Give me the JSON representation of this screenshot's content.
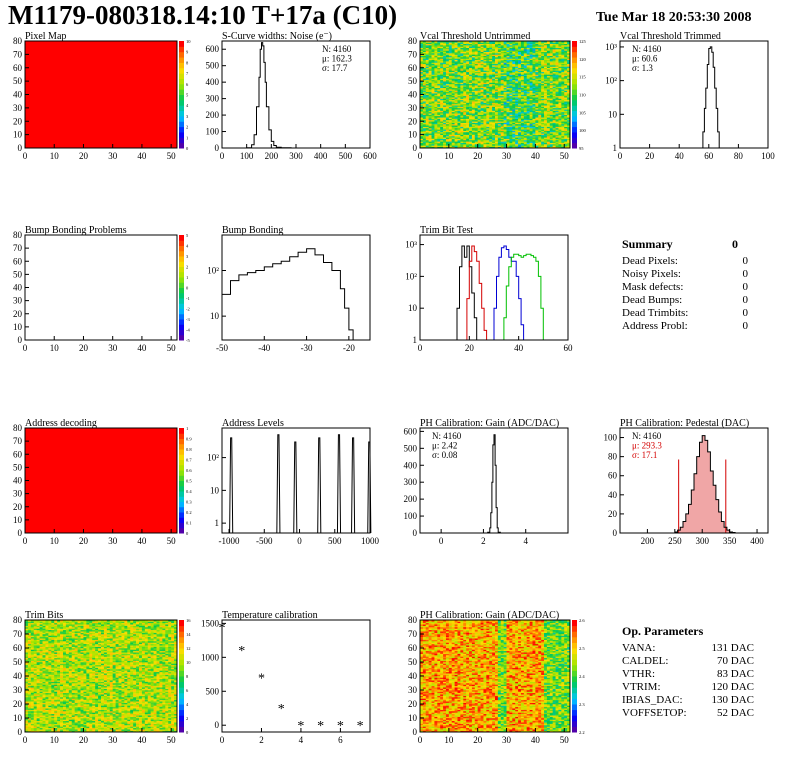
{
  "header": {
    "title": "M1179-080318.14:10 T+17a (C10)",
    "date": "Tue Mar 18 20:53:30 2008"
  },
  "colors": {
    "frame": "#000000",
    "map_fill": "#ff0000",
    "hist_line": "#000000",
    "trim_red": "#d40000",
    "trim_blue": "#0000d4",
    "trim_green": "#00c000",
    "pedestal_fill": "#d40000"
  },
  "chart_data": [
    {
      "id": "pixel-map",
      "type": "heatmap",
      "title": "Pixel Map",
      "xlim": [
        0,
        52
      ],
      "ylim": [
        0,
        80
      ],
      "xticks": [
        "0",
        "10",
        "20",
        "30",
        "40",
        "50"
      ],
      "yticks": [
        "0",
        "10",
        "20",
        "30",
        "40",
        "50",
        "60",
        "70",
        "80"
      ],
      "pattern": "uniform",
      "fill": "#ff0000",
      "palette_ticks": [
        "0",
        "1",
        "2",
        "3",
        "4",
        "5",
        "6",
        "7",
        "8",
        "9",
        "10"
      ]
    },
    {
      "id": "noise",
      "type": "line",
      "title": "S-Curve widths: Noise (e⁻)",
      "xlim": [
        0,
        600
      ],
      "ylim": [
        0,
        650
      ],
      "xticks": [
        "0",
        "100",
        "200",
        "300",
        "400",
        "500",
        "600"
      ],
      "yticks": [
        "0",
        "100",
        "200",
        "300",
        "400",
        "500",
        "600"
      ],
      "x": [
        80,
        100,
        120,
        130,
        140,
        150,
        155,
        160,
        165,
        170,
        175,
        180,
        190,
        200,
        210,
        220,
        240,
        260,
        280
      ],
      "values": [
        0,
        2,
        20,
        80,
        250,
        430,
        600,
        640,
        620,
        520,
        400,
        250,
        110,
        40,
        15,
        5,
        2,
        1,
        0
      ],
      "stats": [
        "N: 4160",
        "μ: 162.3",
        "σ: 17.7"
      ]
    },
    {
      "id": "vcal-untrimmed",
      "type": "heatmap",
      "title": "Vcal Threshold Untrimmed",
      "xlim": [
        0,
        52
      ],
      "ylim": [
        0,
        80
      ],
      "xticks": [
        "0",
        "10",
        "20",
        "30",
        "40",
        "50"
      ],
      "yticks": [
        "0",
        "10",
        "20",
        "30",
        "40",
        "50",
        "60",
        "70",
        "80"
      ],
      "pattern": "noise-cold",
      "palette_ticks": [
        "95",
        "100",
        "105",
        "110",
        "115",
        "120",
        "125"
      ]
    },
    {
      "id": "vcal-trimmed",
      "type": "line",
      "title": "Vcal Threshold Trimmed",
      "yscale": "log",
      "xlim": [
        0,
        100
      ],
      "ylim": [
        1,
        1500
      ],
      "xticks": [
        "0",
        "20",
        "40",
        "60",
        "80",
        "100"
      ],
      "yticks": [
        "1",
        "10",
        "10²",
        "10³"
      ],
      "x": [
        55,
        56,
        57,
        58,
        59,
        60,
        61,
        62,
        63,
        64,
        65,
        66,
        67,
        68
      ],
      "values": [
        1,
        3,
        15,
        60,
        300,
        900,
        1000,
        700,
        250,
        60,
        15,
        3,
        1,
        1
      ],
      "stats": [
        "N: 4160",
        "μ: 60.6",
        "σ:  1.3"
      ]
    },
    {
      "id": "bump-problems",
      "type": "heatmap",
      "title": "Bump Bonding Problems",
      "xlim": [
        0,
        52
      ],
      "ylim": [
        0,
        80
      ],
      "xticks": [
        "0",
        "10",
        "20",
        "30",
        "40",
        "50"
      ],
      "yticks": [
        "0",
        "10",
        "20",
        "30",
        "40",
        "50",
        "60",
        "70",
        "80"
      ],
      "pattern": "empty",
      "palette_ticks": [
        "-5",
        "-4",
        "-3",
        "-2",
        "-1",
        "0",
        "1",
        "2",
        "3",
        "4",
        "5"
      ]
    },
    {
      "id": "bump-bonding",
      "type": "line",
      "title": "Bump Bonding",
      "yscale": "log",
      "xlim": [
        -50,
        -15
      ],
      "ylim": [
        3,
        600
      ],
      "xticks": [
        "-50",
        "-40",
        "-30",
        "-20"
      ],
      "yticks": [
        "10",
        "10²"
      ],
      "x": [
        -50,
        -48,
        -46,
        -44,
        -42,
        -40,
        -38,
        -36,
        -34,
        -32,
        -30,
        -28,
        -26,
        -24,
        -22,
        -21,
        -20,
        -19
      ],
      "values": [
        30,
        60,
        80,
        90,
        100,
        120,
        140,
        160,
        200,
        250,
        300,
        220,
        150,
        100,
        40,
        15,
        5,
        3
      ]
    },
    {
      "id": "trim-bit-test",
      "type": "line",
      "title": "Trim Bit Test",
      "yscale": "log",
      "xlim": [
        0,
        60
      ],
      "ylim": [
        1,
        2000
      ],
      "xticks": [
        "0",
        "20",
        "40",
        "60"
      ],
      "yticks": [
        "1",
        "10",
        "10²",
        "10³"
      ],
      "series": [
        {
          "color": "#000000",
          "x": [
            14,
            15,
            16,
            17,
            18,
            19,
            20,
            21,
            22,
            23
          ],
          "values": [
            1,
            10,
            200,
            900,
            400,
            900,
            200,
            30,
            5,
            1
          ]
        },
        {
          "color": "#d40000",
          "x": [
            18,
            19,
            20,
            21,
            22,
            23,
            24,
            25,
            26,
            27
          ],
          "values": [
            1,
            20,
            300,
            900,
            600,
            300,
            60,
            10,
            2,
            1
          ]
        },
        {
          "color": "#0000d4",
          "x": [
            29,
            30,
            31,
            32,
            33,
            34,
            35,
            36,
            37,
            38,
            39,
            40,
            41,
            42
          ],
          "values": [
            1,
            10,
            100,
            400,
            800,
            900,
            700,
            400,
            300,
            300,
            100,
            20,
            3,
            1
          ]
        },
        {
          "color": "#00c000",
          "x": [
            33,
            34,
            35,
            36,
            37,
            38,
            39,
            40,
            41,
            42,
            43,
            44,
            45,
            46,
            47,
            48,
            49,
            50
          ],
          "values": [
            1,
            5,
            50,
            200,
            400,
            500,
            500,
            450,
            400,
            450,
            500,
            500,
            450,
            400,
            300,
            100,
            10,
            1
          ]
        }
      ]
    },
    {
      "id": "address-decoding",
      "type": "heatmap",
      "title": "Address decoding",
      "xlim": [
        0,
        52
      ],
      "ylim": [
        0,
        80
      ],
      "xticks": [
        "0",
        "10",
        "20",
        "30",
        "40",
        "50"
      ],
      "yticks": [
        "0",
        "10",
        "20",
        "30",
        "40",
        "50",
        "60",
        "70",
        "80"
      ],
      "pattern": "uniform",
      "fill": "#ff0000",
      "palette_ticks": [
        "0",
        "0.1",
        "0.2",
        "0.3",
        "0.4",
        "0.5",
        "0.6",
        "0.7",
        "0.8",
        "0.9",
        "1"
      ]
    },
    {
      "id": "address-levels",
      "type": "line",
      "title": "Address Levels",
      "yscale": "log",
      "xlim": [
        -1100,
        1000
      ],
      "ylim": [
        0.5,
        800
      ],
      "xticks": [
        "-1000",
        "-500",
        "0",
        "500",
        "1000"
      ],
      "yticks": [
        "1",
        "10",
        "10²"
      ],
      "peaks_x": [
        -970,
        -300,
        -60,
        280,
        560,
        760,
        990
      ],
      "peaks_y": [
        400,
        500,
        300,
        400,
        500,
        400,
        300
      ]
    },
    {
      "id": "ph-gain",
      "type": "line",
      "title": "PH Calibration: Gain (ADC/DAC)",
      "xlim": [
        -1,
        6
      ],
      "ylim": [
        0,
        620
      ],
      "xticks": [
        "0",
        "2",
        "4"
      ],
      "yticks": [
        "0",
        "100",
        "200",
        "300",
        "400",
        "500",
        "600"
      ],
      "x": [
        2.1,
        2.2,
        2.3,
        2.35,
        2.4,
        2.45,
        2.5,
        2.55,
        2.6,
        2.65,
        2.7,
        2.8
      ],
      "values": [
        0,
        5,
        30,
        120,
        300,
        520,
        580,
        400,
        150,
        30,
        5,
        0
      ],
      "stats": [
        "N: 4160",
        "μ: 2.42",
        "σ: 0.08"
      ]
    },
    {
      "id": "ph-pedestal",
      "type": "line",
      "title": "PH Calibration: Pedestal (DAC)",
      "xlim": [
        150,
        420
      ],
      "ylim": [
        0,
        110
      ],
      "xticks": [
        "200",
        "250",
        "300",
        "350",
        "400"
      ],
      "yticks": [
        "0",
        "20",
        "40",
        "60",
        "80",
        "100"
      ],
      "x": [
        250,
        255,
        260,
        265,
        270,
        275,
        280,
        285,
        290,
        295,
        300,
        305,
        310,
        315,
        320,
        325,
        330,
        335,
        340,
        345,
        350,
        355,
        360
      ],
      "values": [
        1,
        3,
        6,
        12,
        20,
        30,
        45,
        62,
        80,
        95,
        102,
        97,
        85,
        65,
        50,
        35,
        22,
        12,
        6,
        3,
        1,
        0.5,
        0
      ],
      "cut_x": [
        257,
        343
      ],
      "stats": [
        "N: 4160",
        "μ: 293.3",
        "σ: 17.1"
      ]
    },
    {
      "id": "trim-bits",
      "type": "heatmap",
      "title": "Trim Bits",
      "xlim": [
        0,
        52
      ],
      "ylim": [
        0,
        80
      ],
      "xticks": [
        "0",
        "10",
        "20",
        "30",
        "40",
        "50"
      ],
      "yticks": [
        "0",
        "10",
        "20",
        "30",
        "40",
        "50",
        "60",
        "70",
        "80"
      ],
      "pattern": "noise-green",
      "palette_ticks": [
        "0",
        "2",
        "4",
        "6",
        "8",
        "10",
        "12",
        "14",
        "16"
      ]
    },
    {
      "id": "temperature",
      "type": "scatter",
      "title": "Temperature calibration",
      "xlim": [
        0,
        7.5
      ],
      "ylim": [
        -100,
        1550
      ],
      "xticks": [
        "0",
        "2",
        "4",
        "6"
      ],
      "yticks": [
        "0",
        "500",
        "1000",
        "1500"
      ],
      "x": [
        0,
        1,
        2,
        3,
        4,
        5,
        6,
        7
      ],
      "values": [
        1450,
        1110,
        700,
        250,
        0,
        0,
        0,
        0
      ]
    },
    {
      "id": "ph-gain-map",
      "type": "heatmap",
      "title": "PH Calibration: Gain (ADC/DAC)",
      "xlim": [
        0,
        52
      ],
      "ylim": [
        0,
        80
      ],
      "xticks": [
        "0",
        "10",
        "20",
        "30",
        "40",
        "50"
      ],
      "yticks": [
        "0",
        "10",
        "20",
        "30",
        "40",
        "50",
        "60",
        "70",
        "80"
      ],
      "pattern": "noise-warm",
      "palette_ticks": [
        "2.2",
        "2.3",
        "2.4",
        "2.5",
        "2.6"
      ]
    }
  ],
  "summary": {
    "heading": "Summary",
    "heading_value": "0",
    "rows": [
      {
        "label": "Dead Pixels:",
        "value": "0"
      },
      {
        "label": "Noisy Pixels:",
        "value": "0"
      },
      {
        "label": "Mask defects:",
        "value": "0"
      },
      {
        "label": "Dead Bumps:",
        "value": "0"
      },
      {
        "label": "Dead Trimbits:",
        "value": "0"
      },
      {
        "label": "Address Probl:",
        "value": "0"
      }
    ]
  },
  "parameters": {
    "heading": "Op. Parameters",
    "rows": [
      {
        "label": "VANA:",
        "value": "131 DAC"
      },
      {
        "label": "CALDEL:",
        "value": "70 DAC"
      },
      {
        "label": "VTHR:",
        "value": "83 DAC"
      },
      {
        "label": "VTRIM:",
        "value": "120 DAC"
      },
      {
        "label": "IBIAS_DAC:",
        "value": "130 DAC"
      },
      {
        "label": "VOFFSETOP:",
        "value": "52 DAC"
      }
    ]
  }
}
